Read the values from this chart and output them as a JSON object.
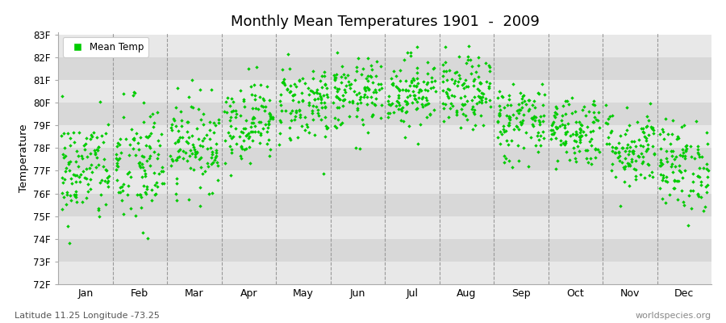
{
  "title": "Monthly Mean Temperatures 1901  -  2009",
  "ylabel": "Temperature",
  "y_ticks": [
    "72F",
    "73F",
    "74F",
    "75F",
    "76F",
    "77F",
    "78F",
    "79F",
    "80F",
    "81F",
    "82F",
    "83F"
  ],
  "y_min": 72,
  "y_max": 83,
  "months": [
    "Jan",
    "Feb",
    "Mar",
    "Apr",
    "May",
    "Jun",
    "Jul",
    "Aug",
    "Sep",
    "Oct",
    "Nov",
    "Dec"
  ],
  "point_color": "#00cc00",
  "band_color_light": "#e8e8e8",
  "band_color_dark": "#d8d8d8",
  "outer_background": "#ffffff",
  "legend_label": "Mean Temp",
  "footnote_left": "Latitude 11.25 Longitude -73.25",
  "footnote_right": "worldspecies.org",
  "monthly_means": [
    77.0,
    77.2,
    78.2,
    79.2,
    80.0,
    80.3,
    80.5,
    80.4,
    79.2,
    78.8,
    78.0,
    77.2
  ],
  "monthly_stds": [
    1.2,
    1.5,
    1.0,
    0.9,
    0.9,
    0.8,
    0.8,
    0.8,
    0.9,
    0.8,
    0.9,
    1.0
  ],
  "n_years": 109,
  "seed": 42
}
